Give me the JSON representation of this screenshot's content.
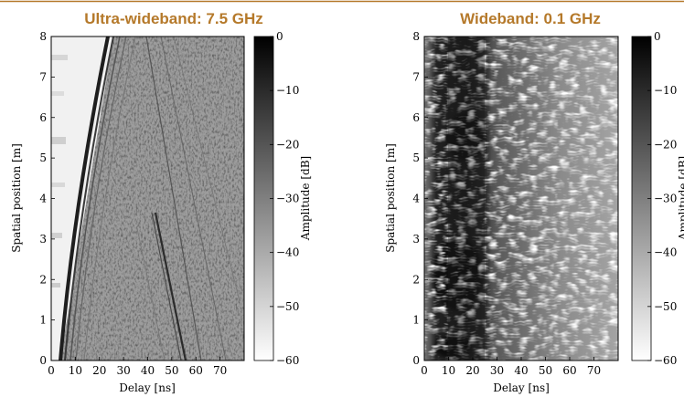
{
  "chart_data": [
    {
      "type": "heatmap",
      "title": "Ultra-wideband: 7.5 GHz",
      "xlabel": "Delay [ns]",
      "ylabel": "Spatial position [m]",
      "xlim": [
        0,
        80
      ],
      "ylim": [
        0,
        8
      ],
      "xticks": [
        0,
        10,
        20,
        30,
        40,
        50,
        60,
        70
      ],
      "yticks": [
        0,
        1,
        2,
        3,
        4,
        5,
        6,
        7,
        8
      ],
      "colorbar": {
        "label": "Amplitude [dB]",
        "range": [
          -60,
          0
        ],
        "ticks": [
          0,
          -10,
          -20,
          -30,
          -40,
          -50,
          -60
        ],
        "colormap": "grayscale (black = 0 dB, white = -60 dB)"
      },
      "features": [
        {
          "name": "direct path",
          "start": [
            4,
            0
          ],
          "end": [
            26,
            8
          ]
        },
        {
          "name": "reflection",
          "start": [
            56,
            0
          ],
          "end": [
            40,
            4.4
          ]
        },
        {
          "name": "reflection",
          "start": [
            62,
            0
          ],
          "end": [
            38,
            8
          ]
        },
        {
          "name": "reflection",
          "start": [
            72,
            0
          ],
          "end": [
            45,
            8
          ]
        }
      ]
    },
    {
      "type": "heatmap",
      "title": "Wideband: 0.1 GHz",
      "xlabel": "Delay [ns]",
      "ylabel": "Spatial position [m]",
      "xlim": [
        0,
        80
      ],
      "ylim": [
        0,
        8
      ],
      "xticks": [
        0,
        10,
        20,
        30,
        40,
        50,
        60,
        70
      ],
      "yticks": [
        0,
        1,
        2,
        3,
        4,
        5,
        6,
        7,
        8
      ],
      "colorbar": {
        "label": "Amplitude [dB]",
        "range": [
          -60,
          0
        ],
        "ticks": [
          0,
          -10,
          -20,
          -30,
          -40,
          -50,
          -60
        ],
        "colormap": "grayscale (black = 0 dB, white = -60 dB)"
      },
      "features": [
        {
          "name": "strong early arrivals",
          "delay_range": [
            0,
            30
          ]
        },
        {
          "name": "bright streak pattern",
          "delay_range": [
            20,
            80
          ]
        }
      ]
    }
  ]
}
